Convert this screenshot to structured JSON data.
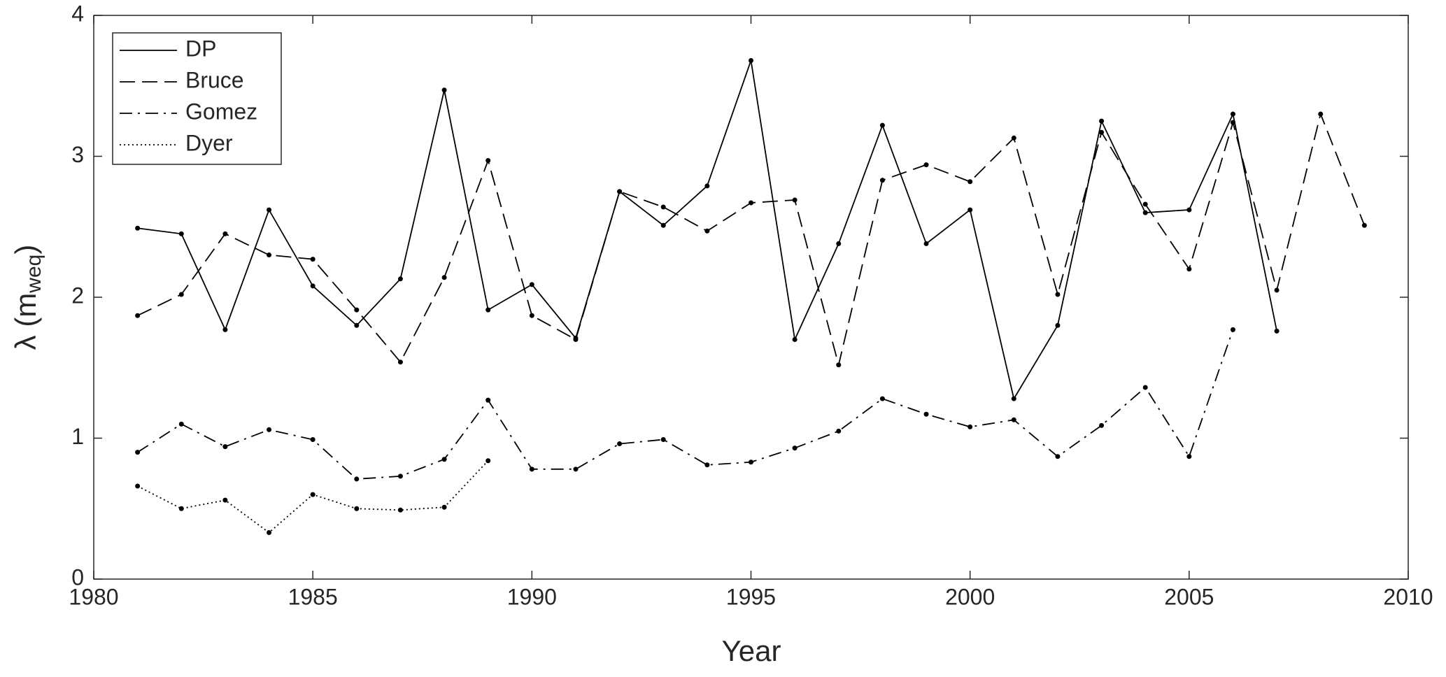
{
  "chart_data": {
    "type": "line",
    "xlabel": "Year",
    "ylabel": {
      "main": "λ (m",
      "sub": "weq",
      "close": ")"
    },
    "x": [
      1981,
      1982,
      1983,
      1984,
      1985,
      1986,
      1987,
      1988,
      1989,
      1990,
      1991,
      1992,
      1993,
      1994,
      1995,
      1996,
      1997,
      1998,
      1999,
      2000,
      2001,
      2002,
      2003,
      2004,
      2005,
      2006,
      2007,
      2008,
      2009
    ],
    "xlim": [
      1980,
      2010
    ],
    "xticks": [
      1980,
      1985,
      1990,
      1995,
      2000,
      2005,
      2010
    ],
    "ylim": [
      0,
      4
    ],
    "yticks": [
      0,
      1,
      2,
      3,
      4
    ],
    "legend": "upper-left",
    "series": [
      {
        "name": "DP",
        "color": "#000000",
        "dash": "solid",
        "values": [
          2.49,
          2.45,
          1.77,
          2.62,
          2.08,
          1.8,
          2.13,
          3.47,
          1.91,
          2.09,
          1.71,
          2.75,
          2.51,
          2.79,
          3.68,
          1.7,
          2.38,
          3.22,
          2.38,
          2.62,
          1.28,
          1.8,
          3.25,
          2.6,
          2.62,
          3.3,
          1.76,
          null,
          null
        ]
      },
      {
        "name": "Bruce",
        "color": "#000000",
        "dash": "dashed",
        "values": [
          1.87,
          2.02,
          2.45,
          2.3,
          2.27,
          1.91,
          1.54,
          2.14,
          2.97,
          1.87,
          1.7,
          2.75,
          2.64,
          2.47,
          2.67,
          2.69,
          1.52,
          2.83,
          2.94,
          2.82,
          3.13,
          2.02,
          3.17,
          2.66,
          2.2,
          3.24,
          2.05,
          3.3,
          2.51
        ]
      },
      {
        "name": "Gomez",
        "color": "#000000",
        "dash": "dashdot",
        "values": [
          0.9,
          1.1,
          0.94,
          1.06,
          0.99,
          0.71,
          0.73,
          0.85,
          1.27,
          0.78,
          0.78,
          0.96,
          0.99,
          0.81,
          0.83,
          0.93,
          1.05,
          1.28,
          1.17,
          1.08,
          1.13,
          0.87,
          1.09,
          1.36,
          0.87,
          1.77,
          null,
          null,
          null
        ]
      },
      {
        "name": "Dyer",
        "color": "#000000",
        "dash": "dotted",
        "values": [
          0.66,
          0.5,
          0.56,
          0.33,
          0.6,
          0.5,
          0.49,
          0.51,
          0.84,
          null,
          null,
          null,
          null,
          null,
          null,
          null,
          null,
          null,
          null,
          null,
          null,
          null,
          null,
          null,
          null,
          null,
          null,
          null,
          null
        ]
      }
    ]
  }
}
